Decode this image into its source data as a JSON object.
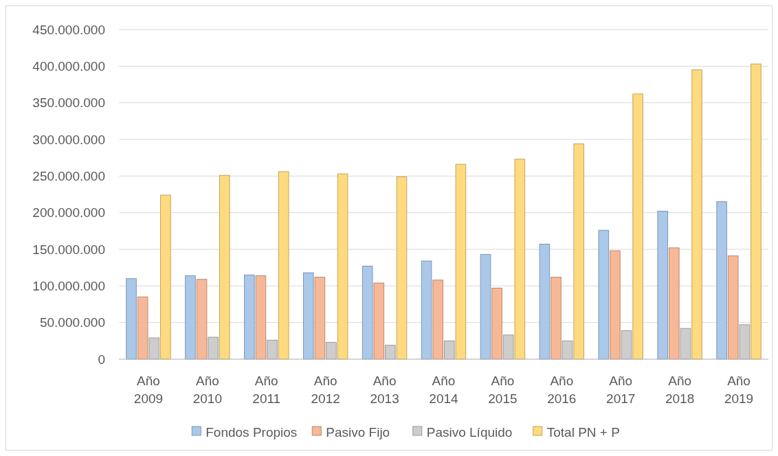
{
  "chart_data": {
    "type": "bar",
    "categories": [
      "Año 2009",
      "Año 2010",
      "Año 2011",
      "Año 2012",
      "Año 2013",
      "Año 2014",
      "Año 2015",
      "Año 2016",
      "Año 2017",
      "Año 2018",
      "Año 2019"
    ],
    "series": [
      {
        "name": "Fondos Propios",
        "color": "#a9c8ea",
        "values": [
          110000000,
          114000000,
          115000000,
          118000000,
          127000000,
          134000000,
          143000000,
          157000000,
          176000000,
          202000000,
          215000000
        ]
      },
      {
        "name": "Pasivo Fijo",
        "color": "#f6b896",
        "values": [
          85000000,
          109000000,
          114000000,
          112000000,
          104000000,
          108000000,
          97000000,
          112000000,
          148000000,
          152000000,
          141000000
        ]
      },
      {
        "name": "Pasivo Líquido",
        "color": "#cdcdcd",
        "values": [
          29000000,
          30000000,
          26000000,
          23000000,
          19000000,
          25000000,
          33000000,
          25000000,
          39000000,
          42000000,
          47000000
        ]
      },
      {
        "name": "Total PN + P",
        "color": "#ffda7f",
        "values": [
          224000000,
          251000000,
          256000000,
          253000000,
          249000000,
          266000000,
          273000000,
          294000000,
          362000000,
          395000000,
          403000000
        ]
      }
    ],
    "ylim": [
      0,
      450000000
    ],
    "yticks": [
      0,
      {
        "value": 50000000,
        "label": "50.000.000"
      },
      {
        "value": 100000000,
        "label": "100.000.000"
      },
      {
        "value": 150000000,
        "label": "150.000.000"
      },
      {
        "value": 200000000,
        "label": "200.000.000"
      },
      {
        "value": 250000000,
        "label": "250.000.000"
      },
      {
        "value": 300000000,
        "label": "300.000.000"
      },
      {
        "value": 350000000,
        "label": "350.000.000"
      },
      {
        "value": 400000000,
        "label": "400.000.000"
      },
      {
        "value": 450000000,
        "label": "450.000.000"
      }
    ],
    "grid": "y",
    "legend": "bottom"
  }
}
